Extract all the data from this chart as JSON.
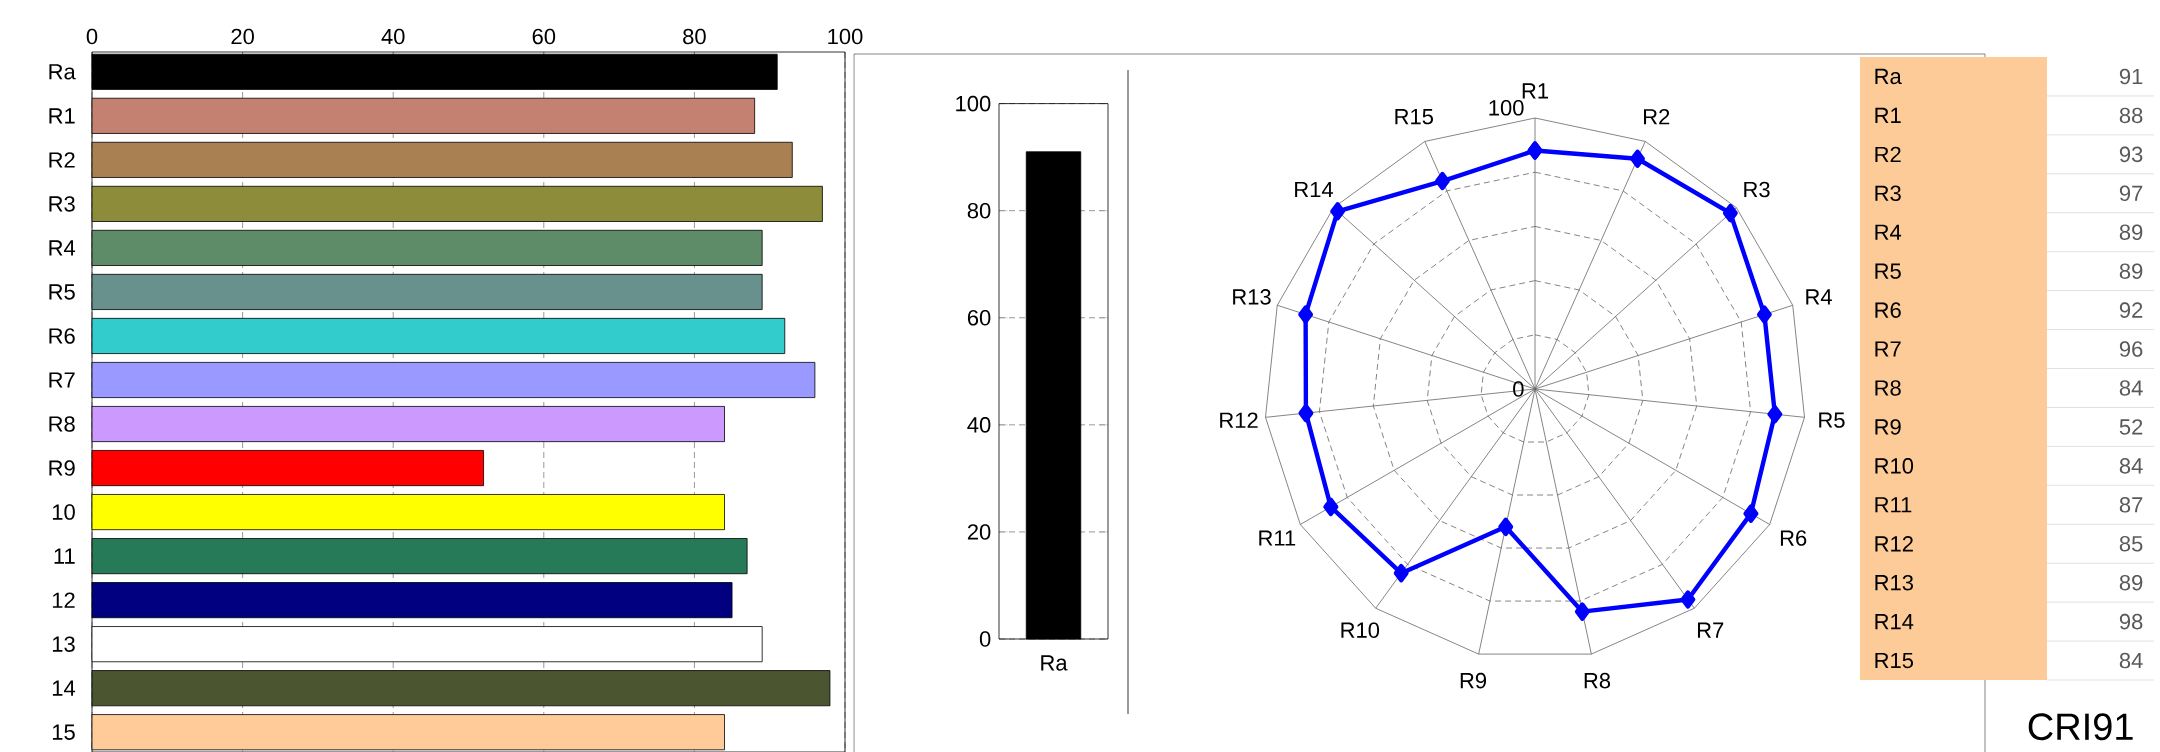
{
  "chart_data": [
    {
      "type": "bar",
      "orientation": "horizontal",
      "categories": [
        "Ra",
        "R1",
        "R2",
        "R3",
        "R4",
        "R5",
        "R6",
        "R7",
        "R8",
        "R9",
        "10",
        "11",
        "12",
        "13",
        "14",
        "15"
      ],
      "values": [
        91,
        88,
        93,
        97,
        89,
        89,
        92,
        96,
        84,
        52,
        84,
        87,
        85,
        89,
        98,
        84
      ],
      "colors": [
        "#000000",
        "#c48070",
        "#a98052",
        "#8c8c3a",
        "#5e8c68",
        "#68908c",
        "#33cccc",
        "#9999ff",
        "#cc99ff",
        "#ff0000",
        "#ffff00",
        "#267a58",
        "#000080",
        "#ffffff",
        "#4b5530",
        "#ffcc99"
      ],
      "xlim": [
        0,
        100
      ],
      "xticks": [
        0,
        20,
        40,
        60,
        80,
        100
      ],
      "grid": "x"
    },
    {
      "type": "bar",
      "categories": [
        "Ra"
      ],
      "values": [
        91
      ],
      "color": "#000000",
      "ylim": [
        0,
        100
      ],
      "yticks": [
        0,
        20,
        40,
        60,
        80,
        100
      ],
      "grid": "y"
    },
    {
      "type": "radar",
      "categories": [
        "R1",
        "R2",
        "R3",
        "R4",
        "R5",
        "R6",
        "R7",
        "R8",
        "R9",
        "R10",
        "R11",
        "R12",
        "R13",
        "R14",
        "R15"
      ],
      "series": [
        {
          "color": "#0000ff",
          "values": [
            88,
            93,
            97,
            89,
            89,
            92,
            96,
            84,
            52,
            84,
            87,
            85,
            89,
            98,
            84
          ]
        }
      ],
      "ylim": [
        0,
        100
      ],
      "yticks": [
        0,
        100
      ],
      "grid": true,
      "marker": "diamond"
    },
    {
      "type": "other",
      "categories": [
        "Ra",
        "R1",
        "R2",
        "R3",
        "R4",
        "R5",
        "R6",
        "R7",
        "R8",
        "R9",
        "R10",
        "R11",
        "R12",
        "R13",
        "R14",
        "R15"
      ],
      "values": [
        91,
        88,
        93,
        97,
        89,
        89,
        92,
        96,
        84,
        52,
        84,
        87,
        85,
        89,
        98,
        84
      ],
      "color": "#fdcb98",
      "data_labels": true,
      "annotations": [
        "CRI91"
      ]
    }
  ]
}
